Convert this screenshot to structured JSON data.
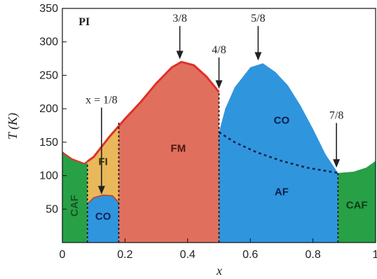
{
  "chart_data": {
    "type": "area",
    "title": "",
    "xlabel": "x",
    "ylabel": "T (K)",
    "xlim": [
      0,
      1
    ],
    "ylim": [
      0,
      350
    ],
    "x_ticks": [
      0,
      0.2,
      0.4,
      0.6,
      0.8,
      1
    ],
    "x_tick_labels": [
      "0",
      "0.2",
      "0.4",
      "0.6",
      "0.8",
      "1"
    ],
    "y_ticks": [
      50,
      100,
      150,
      200,
      250,
      300,
      350
    ],
    "y_tick_labels": [
      "50",
      "100",
      "150",
      "200",
      "250",
      "300",
      "350"
    ],
    "grid": false,
    "legend": "none",
    "colors": {
      "CAF": "#27a046",
      "FI": "#e8b85a",
      "CO_low": "#2f95dd",
      "FM": "#e0705d",
      "CO_high": "#2f95dd",
      "AF": "#2f95dd",
      "FM_boundary": "#e0302a"
    },
    "boundaries": {
      "upper": [
        [
          0,
          135
        ],
        [
          0.03,
          125
        ],
        [
          0.07,
          118
        ],
        [
          0.1,
          128
        ],
        [
          0.15,
          158
        ],
        [
          0.2,
          185
        ],
        [
          0.25,
          210
        ],
        [
          0.3,
          238
        ],
        [
          0.35,
          262
        ],
        [
          0.38,
          270
        ],
        [
          0.42,
          265
        ],
        [
          0.46,
          248
        ],
        [
          0.5,
          225
        ],
        [
          0.5,
          165
        ],
        [
          0.52,
          200
        ],
        [
          0.55,
          232
        ],
        [
          0.6,
          262
        ],
        [
          0.64,
          268
        ],
        [
          0.68,
          255
        ],
        [
          0.72,
          235
        ],
        [
          0.76,
          205
        ],
        [
          0.8,
          170
        ],
        [
          0.84,
          132
        ],
        [
          0.88,
          104
        ],
        [
          0.93,
          106
        ],
        [
          0.97,
          112
        ],
        [
          1,
          122
        ]
      ],
      "co_af_dotted": [
        [
          0.5,
          165
        ],
        [
          0.55,
          150
        ],
        [
          0.62,
          135
        ],
        [
          0.7,
          122
        ],
        [
          0.78,
          112
        ],
        [
          0.88,
          104
        ]
      ],
      "fi_co_low": [
        [
          0.08,
          58
        ],
        [
          0.1,
          67
        ],
        [
          0.13,
          71
        ],
        [
          0.16,
          70
        ],
        [
          0.18,
          60
        ]
      ],
      "x_dividers": [
        {
          "x": 0.08,
          "ymax": 118
        },
        {
          "x": 0.18,
          "ymax": 180
        },
        {
          "x": 0.5,
          "ymax": 225
        },
        {
          "x": 0.88,
          "ymax": 104
        }
      ]
    },
    "phase_labels": [
      {
        "text": "CAF",
        "x": 0.04,
        "y": 55,
        "rotate": -90,
        "color": "#1a5128"
      },
      {
        "text": "CO",
        "x": 0.13,
        "y": 38,
        "color": "#13205a"
      },
      {
        "text": "FI",
        "x": 0.13,
        "y": 120,
        "color": "#3a2b0a"
      },
      {
        "text": "FM",
        "x": 0.37,
        "y": 140,
        "color": "#4a1810"
      },
      {
        "text": "CO",
        "x": 0.7,
        "y": 182,
        "color": "#0c1e4a"
      },
      {
        "text": "AF",
        "x": 0.7,
        "y": 75,
        "color": "#0c1e4a"
      },
      {
        "text": "CAF",
        "x": 0.94,
        "y": 55,
        "color": "#0f3a18"
      }
    ],
    "annotations": [
      {
        "text": "PI",
        "x": 0.07,
        "y": 325,
        "style": "bold"
      },
      {
        "text": "3/8",
        "x": 0.375,
        "y": 330,
        "arrow_to": [
          0.375,
          274
        ]
      },
      {
        "text": "4/8",
        "x": 0.5,
        "y": 283,
        "arrow_to": [
          0.5,
          230
        ]
      },
      {
        "text": "5/8",
        "x": 0.625,
        "y": 330,
        "arrow_to": [
          0.625,
          272
        ]
      },
      {
        "text": "7/8",
        "x": 0.875,
        "y": 185,
        "arrow_to": [
          0.875,
          112
        ]
      },
      {
        "text": "x = 1/8",
        "x": 0.125,
        "y": 208,
        "arrow_to": [
          0.125,
          72
        ]
      }
    ]
  }
}
